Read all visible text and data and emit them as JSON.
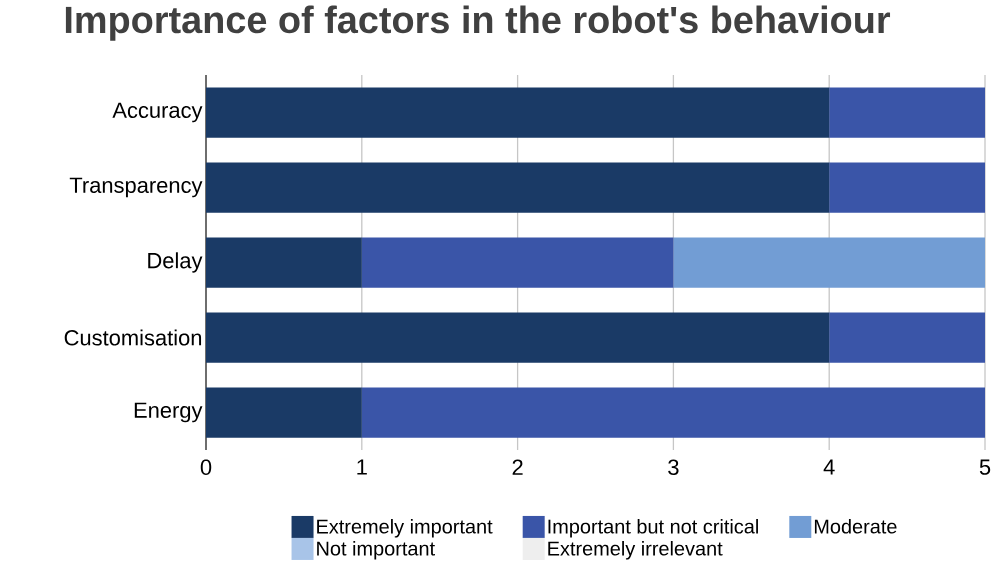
{
  "chart_data": {
    "type": "bar",
    "orientation": "horizontal",
    "stacked": true,
    "title": "Importance of factors in the robot's behaviour",
    "categories": [
      "Accuracy",
      "Transparency",
      "Delay",
      "Customisation",
      "Energy"
    ],
    "series": [
      {
        "name": "Extremely important",
        "color": "#1a3a66",
        "values": [
          4,
          4,
          1,
          4,
          1
        ]
      },
      {
        "name": "Important but not critical",
        "color": "#3a55a8",
        "values": [
          1,
          1,
          2,
          1,
          4
        ]
      },
      {
        "name": "Moderate",
        "color": "#729dd4",
        "values": [
          0,
          0,
          2,
          0,
          0
        ]
      },
      {
        "name": "Not important",
        "color": "#a8c4e8",
        "values": [
          0,
          0,
          0,
          0,
          0
        ]
      },
      {
        "name": "Extremely irrelevant",
        "color": "#eeeeee",
        "values": [
          0,
          0,
          0,
          0,
          0
        ]
      }
    ],
    "xlim": [
      0,
      5
    ],
    "xticks": [
      0,
      1,
      2,
      3,
      4,
      5
    ],
    "grid": "x",
    "legend": "bottom"
  }
}
